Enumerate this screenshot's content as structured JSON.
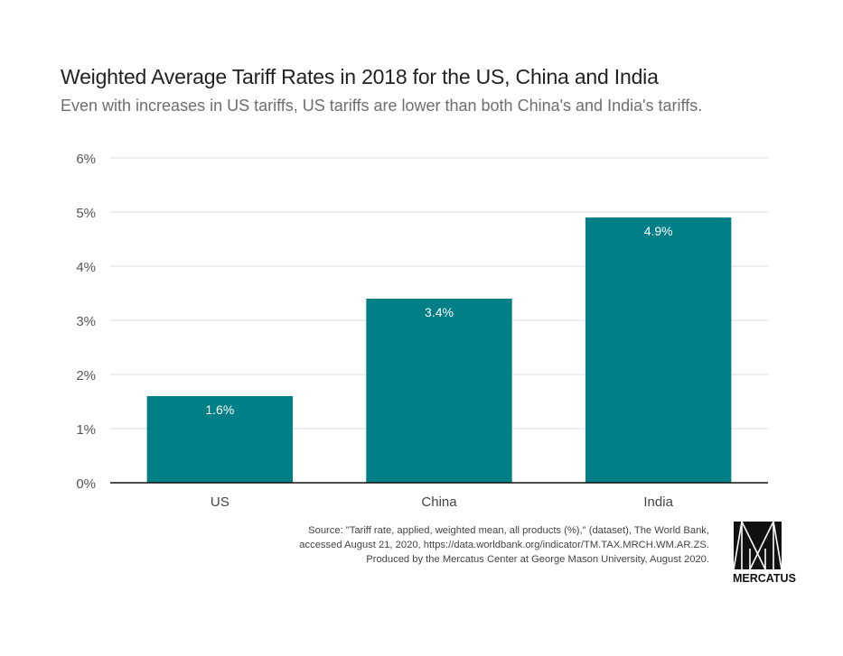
{
  "chart_data": {
    "type": "bar",
    "title": "Weighted Average Tariff Rates in 2018 for the US, China and India",
    "subtitle": "Even with increases in US tariffs, US tariffs are lower than both China's and India's tariffs.",
    "categories": [
      "US",
      "China",
      "India"
    ],
    "values": [
      1.6,
      3.4,
      4.9
    ],
    "data_labels": [
      "1.6%",
      "3.4%",
      "4.9%"
    ],
    "xlabel": "",
    "ylabel": "",
    "ylim": [
      0,
      6
    ],
    "yticks": [
      0,
      1,
      2,
      3,
      4,
      5,
      6
    ],
    "ytick_labels": [
      "0%",
      "1%",
      "2%",
      "3%",
      "4%",
      "5%",
      "6%"
    ],
    "grid": true,
    "legend": "none",
    "colors": {
      "bar": "#007f87",
      "grid": "#dcdcdc",
      "axis": "#111111",
      "label": "#ffffff"
    }
  },
  "source": {
    "lines": [
      "Source: \"Tariff rate, applied, weighted mean, all products (%),\" (dataset), The World Bank,",
      "accessed August 21, 2020, https://data.worldbank.org/indicator/TM.TAX.MRCH.WM.AR.ZS.",
      "Produced by the Mercatus Center at George Mason University, August 2020."
    ]
  },
  "logo": {
    "text": "MERCATUS",
    "icon": "mercatus-logo-icon"
  }
}
